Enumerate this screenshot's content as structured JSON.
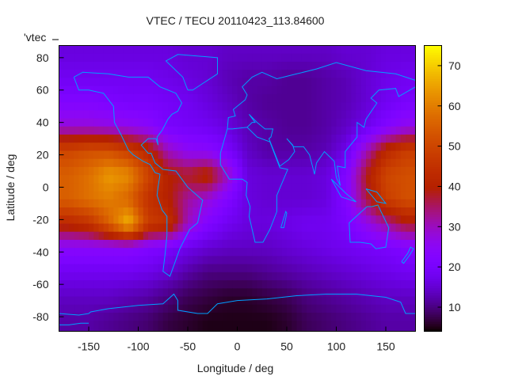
{
  "chart_data": {
    "type": "heatmap",
    "title": "VTEC / TECU 20110423_113.84600",
    "xlabel": "Longitude / deg",
    "ylabel": "Latitude / deg",
    "legend_label": "'vtec",
    "legend_placement": "top-left",
    "xlim": [
      -180,
      180
    ],
    "ylim": [
      -89,
      87.5
    ],
    "xticks": [
      -150,
      -100,
      -50,
      0,
      50,
      100,
      150
    ],
    "yticks": [
      -80,
      -60,
      -40,
      -20,
      0,
      20,
      40,
      60,
      80
    ],
    "colorbar": {
      "range": [
        4,
        75
      ],
      "ticks": [
        10,
        20,
        30,
        40,
        50,
        60,
        70
      ],
      "palette": "black-blue-red-yellow"
    },
    "grid_lon": [
      -170,
      -150,
      -130,
      -110,
      -90,
      -70,
      -50,
      -30,
      -10,
      10,
      30,
      50,
      70,
      90,
      110,
      130,
      150,
      170
    ],
    "grid_lat": [
      82.5,
      67.5,
      52.5,
      37.5,
      22.5,
      7.5,
      -7.5,
      -22.5,
      -37.5,
      -52.5,
      -67.5,
      -82.5
    ],
    "values": [
      [
        16,
        16,
        16,
        16,
        16,
        16,
        15,
        15,
        14,
        14,
        14,
        14,
        14,
        14,
        15,
        15,
        16,
        16
      ],
      [
        18,
        18,
        18,
        18,
        18,
        17,
        16,
        15,
        13,
        12,
        12,
        11,
        11,
        12,
        13,
        15,
        17,
        18
      ],
      [
        22,
        22,
        21,
        20,
        20,
        19,
        18,
        16,
        14,
        12,
        11,
        11,
        11,
        12,
        13,
        15,
        18,
        20
      ],
      [
        28,
        28,
        27,
        26,
        24,
        20,
        19,
        18,
        16,
        13,
        12,
        11,
        11,
        12,
        14,
        17,
        22,
        26
      ],
      [
        50,
        52,
        52,
        48,
        42,
        30,
        25,
        24,
        20,
        14,
        12,
        12,
        12,
        13,
        17,
        30,
        42,
        48
      ],
      [
        55,
        58,
        64,
        62,
        50,
        40,
        38,
        42,
        30,
        16,
        15,
        15,
        15,
        16,
        22,
        38,
        50,
        52
      ],
      [
        55,
        58,
        60,
        56,
        45,
        40,
        32,
        28,
        22,
        16,
        15,
        15,
        15,
        16,
        22,
        36,
        48,
        52
      ],
      [
        42,
        45,
        55,
        68,
        48,
        45,
        30,
        22,
        18,
        16,
        16,
        17,
        18,
        18,
        20,
        26,
        32,
        38
      ],
      [
        24,
        24,
        24,
        24,
        22,
        20,
        17,
        15,
        14,
        14,
        14,
        15,
        16,
        17,
        18,
        19,
        20,
        22
      ],
      [
        18,
        18,
        18,
        18,
        17,
        15,
        12,
        10,
        10,
        10,
        11,
        12,
        13,
        14,
        15,
        16,
        17,
        18
      ],
      [
        14,
        14,
        14,
        13,
        12,
        10,
        8,
        7,
        6,
        6,
        7,
        8,
        10,
        11,
        12,
        13,
        14,
        14
      ],
      [
        12,
        12,
        11,
        10,
        9,
        7,
        6,
        5,
        5,
        5,
        5,
        6,
        8,
        9,
        10,
        11,
        12,
        12
      ]
    ],
    "coastlines": [
      [
        [
          -165,
          68
        ],
        [
          -160,
          60
        ],
        [
          -150,
          60
        ],
        [
          -135,
          58
        ],
        [
          -125,
          50
        ],
        [
          -124,
          40
        ],
        [
          -117,
          32
        ],
        [
          -110,
          23
        ],
        [
          -105,
          20
        ],
        [
          -95,
          16
        ],
        [
          -88,
          14
        ],
        [
          -83,
          9
        ],
        [
          -78,
          8
        ],
        [
          -80,
          0
        ],
        [
          -81,
          -5
        ],
        [
          -76,
          -14
        ],
        [
          -71,
          -18
        ],
        [
          -71,
          -30
        ],
        [
          -73,
          -42
        ],
        [
          -75,
          -52
        ],
        [
          -68,
          -55
        ],
        [
          -65,
          -50
        ],
        [
          -58,
          -38
        ],
        [
          -48,
          -26
        ],
        [
          -40,
          -22
        ],
        [
          -35,
          -8
        ],
        [
          -50,
          0
        ],
        [
          -62,
          10
        ],
        [
          -75,
          11
        ],
        [
          -83,
          15
        ],
        [
          -87,
          21
        ],
        [
          -90,
          21
        ],
        [
          -97,
          26
        ],
        [
          -90,
          30
        ],
        [
          -82,
          30
        ],
        [
          -80,
          26
        ],
        [
          -81,
          31
        ],
        [
          -76,
          35
        ],
        [
          -70,
          42
        ],
        [
          -66,
          45
        ],
        [
          -60,
          47
        ],
        [
          -56,
          52
        ],
        [
          -62,
          58
        ],
        [
          -78,
          62
        ],
        [
          -90,
          68
        ],
        [
          -110,
          68
        ],
        [
          -130,
          70
        ],
        [
          -156,
          71
        ],
        [
          -165,
          68
        ]
      ],
      [
        [
          -50,
          60
        ],
        [
          -45,
          60
        ],
        [
          -20,
          70
        ],
        [
          -20,
          80
        ],
        [
          -60,
          82
        ],
        [
          -72,
          78
        ],
        [
          -55,
          68
        ],
        [
          -50,
          60
        ]
      ],
      [
        [
          -10,
          36
        ],
        [
          -17,
          21
        ],
        [
          -17,
          14
        ],
        [
          -8,
          5
        ],
        [
          5,
          5
        ],
        [
          10,
          3
        ],
        [
          9,
          -5
        ],
        [
          13,
          -12
        ],
        [
          12,
          -18
        ],
        [
          18,
          -34
        ],
        [
          26,
          -34
        ],
        [
          33,
          -26
        ],
        [
          40,
          -15
        ],
        [
          40,
          -5
        ],
        [
          51,
          11
        ],
        [
          43,
          12
        ],
        [
          33,
          28
        ],
        [
          20,
          31
        ],
        [
          10,
          37
        ],
        [
          -5,
          36
        ],
        [
          -10,
          36
        ]
      ],
      [
        [
          44,
          -25
        ],
        [
          49,
          -15
        ],
        [
          50,
          -16
        ],
        [
          47,
          -25
        ],
        [
          44,
          -25
        ]
      ],
      [
        [
          -10,
          36
        ],
        [
          -9,
          43
        ],
        [
          -2,
          44
        ],
        [
          -4,
          48
        ],
        [
          2,
          51
        ],
        [
          8,
          54
        ],
        [
          10,
          57
        ],
        [
          5,
          62
        ],
        [
          15,
          68
        ],
        [
          25,
          71
        ],
        [
          40,
          67
        ],
        [
          60,
          70
        ],
        [
          80,
          73
        ],
        [
          100,
          77
        ],
        [
          130,
          72
        ],
        [
          160,
          70
        ],
        [
          180,
          66
        ]
      ],
      [
        [
          10,
          37
        ],
        [
          15,
          40
        ],
        [
          18,
          40
        ],
        [
          12,
          45
        ],
        [
          20,
          40
        ],
        [
          28,
          36
        ],
        [
          36,
          36
        ],
        [
          34,
          31
        ],
        [
          32,
          30
        ],
        [
          43,
          13
        ],
        [
          52,
          17
        ],
        [
          58,
          22
        ],
        [
          56,
          26
        ],
        [
          50,
          30
        ],
        [
          57,
          25
        ],
        [
          67,
          25
        ],
        [
          73,
          20
        ],
        [
          78,
          8
        ],
        [
          80,
          15
        ],
        [
          88,
          22
        ],
        [
          98,
          16
        ],
        [
          100,
          6
        ],
        [
          104,
          1
        ],
        [
          101,
          13
        ],
        [
          109,
          12
        ],
        [
          109,
          22
        ],
        [
          121,
          31
        ],
        [
          121,
          40
        ],
        [
          128,
          37
        ],
        [
          130,
          42
        ],
        [
          141,
          52
        ],
        [
          135,
          55
        ],
        [
          143,
          60
        ],
        [
          160,
          61
        ],
        [
          163,
          56
        ],
        [
          180,
          62
        ]
      ],
      [
        [
          113,
          -22
        ],
        [
          114,
          -34
        ],
        [
          124,
          -34
        ],
        [
          135,
          -35
        ],
        [
          140,
          -38
        ],
        [
          150,
          -37
        ],
        [
          153,
          -25
        ],
        [
          142,
          -11
        ],
        [
          136,
          -12
        ],
        [
          131,
          -12
        ],
        [
          122,
          -17
        ],
        [
          113,
          -22
        ]
      ],
      [
        [
          166,
          -46
        ],
        [
          172,
          -41
        ],
        [
          175,
          -37
        ],
        [
          178,
          -38
        ],
        [
          174,
          -42
        ],
        [
          168,
          -47
        ],
        [
          166,
          -46
        ]
      ],
      [
        [
          95,
          5
        ],
        [
          105,
          -6
        ],
        [
          115,
          -8
        ],
        [
          120,
          -9
        ],
        [
          110,
          -4
        ],
        [
          105,
          -1
        ],
        [
          95,
          5
        ]
      ],
      [
        [
          130,
          -1
        ],
        [
          141,
          -3
        ],
        [
          150,
          -10
        ],
        [
          141,
          -9
        ],
        [
          130,
          -1
        ]
      ],
      [
        [
          -180,
          -78
        ],
        [
          -160,
          -79
        ],
        [
          -150,
          -78
        ],
        [
          -148,
          -77
        ],
        [
          -130,
          -75
        ],
        [
          -100,
          -73
        ],
        [
          -75,
          -72
        ],
        [
          -64,
          -66
        ],
        [
          -60,
          -70
        ],
        [
          -60,
          -76
        ],
        [
          -40,
          -78
        ],
        [
          -30,
          -78
        ],
        [
          -20,
          -72
        ],
        [
          0,
          -70
        ],
        [
          30,
          -69
        ],
        [
          60,
          -67
        ],
        [
          90,
          -66
        ],
        [
          120,
          -66
        ],
        [
          150,
          -68
        ],
        [
          165,
          -71
        ],
        [
          170,
          -78
        ],
        [
          180,
          -78
        ]
      ],
      [
        [
          -180,
          -85
        ],
        [
          -170,
          -85
        ],
        [
          -158,
          -84
        ],
        [
          -150,
          -84
        ]
      ]
    ]
  }
}
